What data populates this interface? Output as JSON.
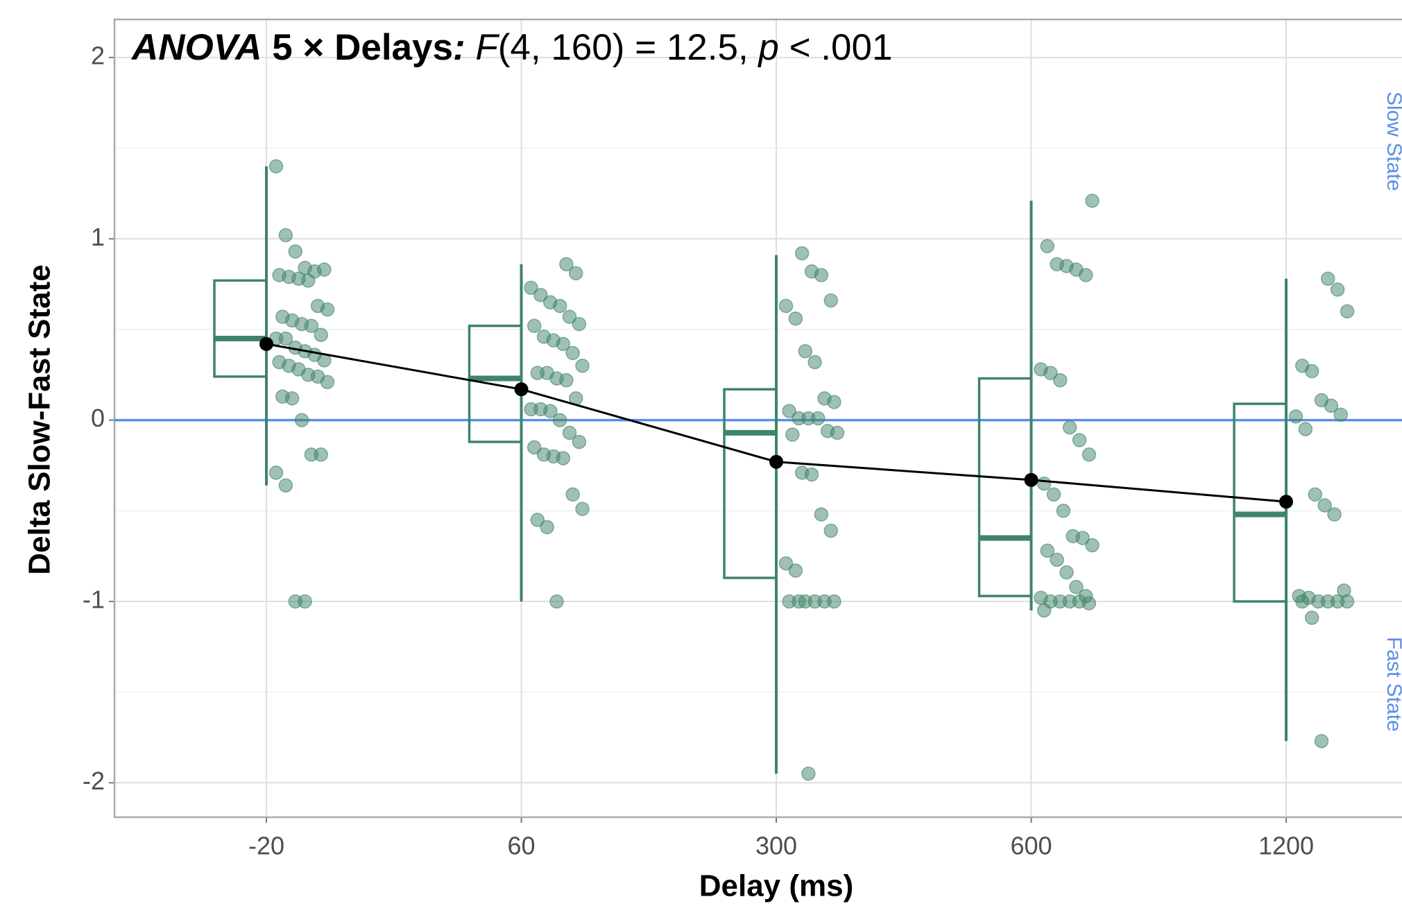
{
  "chart_data": {
    "type": "box",
    "title_parts": [
      "ANOVA",
      " 5 × Delays",
      ":",
      " F",
      "(4, 160) = 12.5, ",
      "p",
      " < .001"
    ],
    "x_label": "Delay (ms)",
    "y_label": "Delta Slow-Fast State",
    "categories": [
      "-20",
      "60",
      "300",
      "600",
      "1200"
    ],
    "q1": [
      0.24,
      -0.12,
      -0.87,
      -0.97,
      -1.0
    ],
    "median": [
      0.45,
      0.23,
      -0.07,
      -0.65,
      -0.52
    ],
    "q3": [
      0.77,
      0.52,
      0.17,
      0.23,
      0.09
    ],
    "whisker_low": [
      -0.36,
      -1.0,
      -1.95,
      -1.05,
      -1.77
    ],
    "whisker_high": [
      1.4,
      0.86,
      0.91,
      1.21,
      0.78
    ],
    "means": [
      0.42,
      0.17,
      -0.23,
      -0.33,
      -0.45
    ],
    "points": [
      [
        1.4,
        1.02,
        0.93,
        0.84,
        0.82,
        0.83,
        0.8,
        0.79,
        0.78,
        0.77,
        0.63,
        0.61,
        0.57,
        0.55,
        0.53,
        0.52,
        0.47,
        0.45,
        0.45,
        0.4,
        0.38,
        0.36,
        0.33,
        0.32,
        0.3,
        0.28,
        0.25,
        0.24,
        0.21,
        0.13,
        0.12,
        0.0,
        -0.19,
        -0.19,
        -0.29,
        -0.36,
        -1.0,
        -1.0
      ],
      [
        0.86,
        0.81,
        0.73,
        0.69,
        0.65,
        0.63,
        0.57,
        0.53,
        0.52,
        0.46,
        0.44,
        0.42,
        0.37,
        0.3,
        0.26,
        0.26,
        0.23,
        0.22,
        0.12,
        0.06,
        0.06,
        0.05,
        0.0,
        -0.07,
        -0.12,
        -0.15,
        -0.19,
        -0.2,
        -0.21,
        -0.41,
        -0.49,
        -0.55,
        -0.59,
        -1.0
      ],
      [
        0.92,
        0.82,
        0.8,
        0.66,
        0.63,
        0.56,
        0.38,
        0.32,
        0.12,
        0.1,
        0.05,
        0.01,
        0.01,
        0.01,
        -0.06,
        -0.07,
        -0.08,
        -0.29,
        -0.3,
        -0.52,
        -0.61,
        -0.79,
        -0.83,
        -1.0,
        -1.0,
        -1.0,
        -1.0,
        -1.0,
        -1.0,
        -1.95
      ],
      [
        1.21,
        0.96,
        0.86,
        0.85,
        0.83,
        0.8,
        0.28,
        0.26,
        0.22,
        -0.04,
        -0.11,
        -0.19,
        -0.35,
        -0.41,
        -0.5,
        -0.64,
        -0.65,
        -0.69,
        -0.72,
        -0.77,
        -0.84,
        -0.92,
        -0.97,
        -0.98,
        -1.0,
        -1.0,
        -1.0,
        -1.0,
        -1.01,
        -1.05
      ],
      [
        0.78,
        0.72,
        0.6,
        0.3,
        0.27,
        0.11,
        0.08,
        0.03,
        0.02,
        -0.05,
        -0.41,
        -0.47,
        -0.52,
        -0.94,
        -0.97,
        -0.98,
        -1.0,
        -1.0,
        -1.0,
        -1.0,
        -1.0,
        -1.09,
        -1.77
      ]
    ],
    "color": "#3f8468",
    "mean_color": "#000000",
    "reference": {
      "value": 0,
      "color": "#5b8ee6",
      "upper_label": "Slow State",
      "lower_label": "Fast State"
    },
    "ylim": [
      -2.19,
      2.21
    ],
    "yticks": [
      -2,
      -1,
      0,
      1,
      2
    ],
    "minor_yticks": [
      -1.5,
      -0.5,
      0.5,
      1.5
    ],
    "grid": true
  }
}
